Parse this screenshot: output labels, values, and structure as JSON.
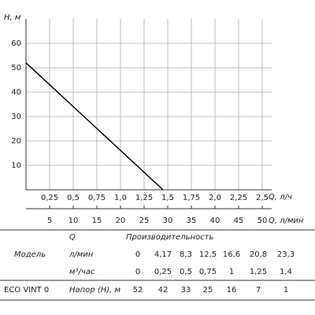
{
  "chart_data": {
    "type": "line",
    "ylabel": "H, м",
    "xlabel": "Q, л/ч",
    "x2label": "Q, л/мин",
    "x": [
      0,
      1.45
    ],
    "values": [
      52,
      0
    ],
    "color": "#000000",
    "xlim": [
      0,
      2.6
    ],
    "ylim": [
      0,
      70
    ],
    "x2lim": [
      0,
      52
    ],
    "xticks": [
      {
        "value": 0.25,
        "label": "0,25"
      },
      {
        "value": 0.5,
        "label": "0,5"
      },
      {
        "value": 0.75,
        "label": "0,75"
      },
      {
        "value": 1,
        "label": "1,0"
      },
      {
        "value": 1.25,
        "label": "1,25"
      },
      {
        "value": 1.5,
        "label": "1,5"
      },
      {
        "value": 1.75,
        "label": "1,75"
      },
      {
        "value": 2,
        "label": "2,0"
      },
      {
        "value": 2.25,
        "label": "2,25"
      },
      {
        "value": 2.5,
        "label": "2,5"
      }
    ],
    "yticks": [
      10,
      20,
      30,
      40,
      50,
      60
    ],
    "x2ticks": [
      5,
      10,
      15,
      20,
      25,
      30,
      35,
      40,
      45,
      50
    ],
    "grid": true
  },
  "table": {
    "rows": [
      [
        "Q",
        "Производительность"
      ],
      [
        "Модель",
        "л/мин",
        "0",
        "4,17",
        "8,3",
        "12,5",
        "16,6",
        "20,8",
        "23,3"
      ],
      [
        "м³/час",
        "0",
        "0,25",
        "0,5",
        "0,75",
        "1",
        "1,25",
        "1,4"
      ],
      [
        "ECO VINT 0",
        "Напор (Н), м",
        "52",
        "42",
        "33",
        "25",
        "16",
        "7",
        "1"
      ]
    ]
  }
}
